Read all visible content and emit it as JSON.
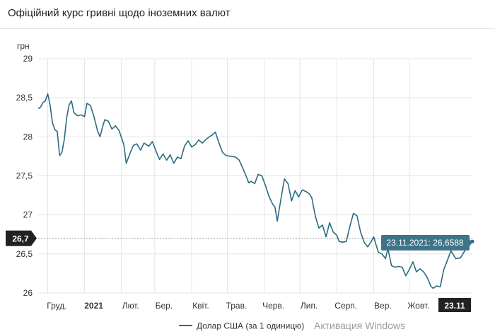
{
  "header": {
    "title": "Офіційний курс гривні щодо іноземних валют"
  },
  "chart_data": {
    "type": "line",
    "ylabel": "грн",
    "ylim": [
      26,
      29
    ],
    "yticks": [
      {
        "value": 29,
        "label": "29"
      },
      {
        "value": 28.5,
        "label": "28,5"
      },
      {
        "value": 28,
        "label": "28"
      },
      {
        "value": 27.5,
        "label": "27,5"
      },
      {
        "value": 27,
        "label": "27"
      },
      {
        "value": 26.5,
        "label": "26,5"
      },
      {
        "value": 26,
        "label": "26"
      }
    ],
    "xlim": [
      "2020-11-23",
      "2021-11-23"
    ],
    "xticks": [
      {
        "date": "2020-12-01",
        "label": "Груд.",
        "bold": false
      },
      {
        "date": "2021-01-01",
        "label": "2021",
        "bold": true
      },
      {
        "date": "2021-02-01",
        "label": "Лют.",
        "bold": false
      },
      {
        "date": "2021-03-01",
        "label": "Бер.",
        "bold": false
      },
      {
        "date": "2021-04-01",
        "label": "Квіт.",
        "bold": false
      },
      {
        "date": "2021-05-01",
        "label": "Трав.",
        "bold": false
      },
      {
        "date": "2021-06-01",
        "label": "Черв.",
        "bold": false
      },
      {
        "date": "2021-07-01",
        "label": "Лип.",
        "bold": false
      },
      {
        "date": "2021-08-01",
        "label": "Серп.",
        "bold": false
      },
      {
        "date": "2021-09-01",
        "label": "Вер.",
        "bold": false
      },
      {
        "date": "2021-10-01",
        "label": "Жовт.",
        "bold": false
      }
    ],
    "grid": true,
    "legend": {
      "position": "bottom"
    },
    "colors": {
      "line": "#2b6a82",
      "axis_badge": "#222222",
      "tooltip": "#3e7489"
    },
    "crosshair": {
      "value": 26.7,
      "label": "26,7"
    },
    "cursor_x_label": "23.11",
    "tooltip": {
      "text": "23.11.2021: 26,6588",
      "date": "2021-11-23",
      "value": 26.6588
    },
    "series": [
      {
        "name": "Долар США (за 1 одиницю)",
        "points": [
          [
            "2020-11-23",
            28.36
          ],
          [
            "2020-11-25",
            28.38
          ],
          [
            "2020-11-27",
            28.44
          ],
          [
            "2020-11-29",
            28.46
          ],
          [
            "2020-12-01",
            28.55
          ],
          [
            "2020-12-03",
            28.41
          ],
          [
            "2020-12-05",
            28.18
          ],
          [
            "2020-12-07",
            28.09
          ],
          [
            "2020-12-09",
            28.07
          ],
          [
            "2020-12-11",
            27.76
          ],
          [
            "2020-12-13",
            27.8
          ],
          [
            "2020-12-15",
            27.97
          ],
          [
            "2020-12-17",
            28.25
          ],
          [
            "2020-12-19",
            28.41
          ],
          [
            "2020-12-21",
            28.46
          ],
          [
            "2020-12-23",
            28.31
          ],
          [
            "2020-12-26",
            28.27
          ],
          [
            "2020-12-29",
            28.28
          ],
          [
            "2021-01-01",
            28.26
          ],
          [
            "2021-01-03",
            28.43
          ],
          [
            "2021-01-06",
            28.4
          ],
          [
            "2021-01-09",
            28.25
          ],
          [
            "2021-01-12",
            28.07
          ],
          [
            "2021-01-14",
            28.0
          ],
          [
            "2021-01-16",
            28.12
          ],
          [
            "2021-01-18",
            28.22
          ],
          [
            "2021-01-21",
            28.2
          ],
          [
            "2021-01-24",
            28.1
          ],
          [
            "2021-01-27",
            28.14
          ],
          [
            "2021-01-30",
            28.08
          ],
          [
            "2021-02-03",
            27.9
          ],
          [
            "2021-02-05",
            27.66
          ],
          [
            "2021-02-08",
            27.78
          ],
          [
            "2021-02-11",
            27.89
          ],
          [
            "2021-02-14",
            27.91
          ],
          [
            "2021-02-17",
            27.83
          ],
          [
            "2021-02-20",
            27.92
          ],
          [
            "2021-02-24",
            27.88
          ],
          [
            "2021-02-27",
            27.94
          ],
          [
            "2021-03-02",
            27.82
          ],
          [
            "2021-03-05",
            27.71
          ],
          [
            "2021-03-08",
            27.78
          ],
          [
            "2021-03-11",
            27.7
          ],
          [
            "2021-03-14",
            27.77
          ],
          [
            "2021-03-17",
            27.66
          ],
          [
            "2021-03-20",
            27.74
          ],
          [
            "2021-03-23",
            27.72
          ],
          [
            "2021-03-26",
            27.88
          ],
          [
            "2021-03-29",
            27.95
          ],
          [
            "2021-04-01",
            27.87
          ],
          [
            "2021-04-04",
            27.9
          ],
          [
            "2021-04-07",
            27.96
          ],
          [
            "2021-04-10",
            27.92
          ],
          [
            "2021-04-14",
            27.98
          ],
          [
            "2021-04-18",
            28.02
          ],
          [
            "2021-04-21",
            28.06
          ],
          [
            "2021-04-24",
            27.92
          ],
          [
            "2021-04-27",
            27.8
          ],
          [
            "2021-04-30",
            27.76
          ],
          [
            "2021-05-04",
            27.75
          ],
          [
            "2021-05-08",
            27.74
          ],
          [
            "2021-05-11",
            27.7
          ],
          [
            "2021-05-14",
            27.6
          ],
          [
            "2021-05-17",
            27.49
          ],
          [
            "2021-05-19",
            27.41
          ],
          [
            "2021-05-21",
            27.43
          ],
          [
            "2021-05-24",
            27.4
          ],
          [
            "2021-05-27",
            27.52
          ],
          [
            "2021-05-30",
            27.5
          ],
          [
            "2021-06-02",
            27.38
          ],
          [
            "2021-06-05",
            27.24
          ],
          [
            "2021-06-08",
            27.14
          ],
          [
            "2021-06-10",
            27.1
          ],
          [
            "2021-06-12",
            26.92
          ],
          [
            "2021-06-15",
            27.2
          ],
          [
            "2021-06-18",
            27.46
          ],
          [
            "2021-06-21",
            27.4
          ],
          [
            "2021-06-24",
            27.18
          ],
          [
            "2021-06-27",
            27.31
          ],
          [
            "2021-06-30",
            27.23
          ],
          [
            "2021-07-03",
            27.32
          ],
          [
            "2021-07-06",
            27.3
          ],
          [
            "2021-07-09",
            27.27
          ],
          [
            "2021-07-11",
            27.22
          ],
          [
            "2021-07-14",
            26.98
          ],
          [
            "2021-07-17",
            26.83
          ],
          [
            "2021-07-20",
            26.87
          ],
          [
            "2021-07-23",
            26.72
          ],
          [
            "2021-07-26",
            26.9
          ],
          [
            "2021-07-29",
            26.78
          ],
          [
            "2021-08-01",
            26.74
          ],
          [
            "2021-08-03",
            26.66
          ],
          [
            "2021-08-06",
            26.65
          ],
          [
            "2021-08-09",
            26.66
          ],
          [
            "2021-08-12",
            26.85
          ],
          [
            "2021-08-15",
            27.02
          ],
          [
            "2021-08-18",
            26.99
          ],
          [
            "2021-08-21",
            26.78
          ],
          [
            "2021-08-24",
            26.65
          ],
          [
            "2021-08-27",
            26.59
          ],
          [
            "2021-08-30",
            26.66
          ],
          [
            "2021-09-01",
            26.72
          ],
          [
            "2021-09-03",
            26.62
          ],
          [
            "2021-09-05",
            26.52
          ],
          [
            "2021-09-08",
            26.5
          ],
          [
            "2021-09-11",
            26.44
          ],
          [
            "2021-09-13",
            26.57
          ],
          [
            "2021-09-16",
            26.35
          ],
          [
            "2021-09-19",
            26.33
          ],
          [
            "2021-09-22",
            26.34
          ],
          [
            "2021-09-25",
            26.33
          ],
          [
            "2021-09-28",
            26.22
          ],
          [
            "2021-10-01",
            26.3
          ],
          [
            "2021-10-04",
            26.4
          ],
          [
            "2021-10-07",
            26.27
          ],
          [
            "2021-10-10",
            26.31
          ],
          [
            "2021-10-13",
            26.27
          ],
          [
            "2021-10-16",
            26.2
          ],
          [
            "2021-10-19",
            26.09
          ],
          [
            "2021-10-21",
            26.06
          ],
          [
            "2021-10-24",
            26.09
          ],
          [
            "2021-10-27",
            26.08
          ],
          [
            "2021-10-30",
            26.3
          ],
          [
            "2021-11-02",
            26.42
          ],
          [
            "2021-11-05",
            26.54
          ],
          [
            "2021-11-09",
            26.44
          ],
          [
            "2021-11-13",
            26.45
          ],
          [
            "2021-11-17",
            26.55
          ],
          [
            "2021-11-20",
            26.6
          ],
          [
            "2021-11-23",
            26.6588
          ]
        ]
      }
    ]
  },
  "watermark": "Активация Windows"
}
